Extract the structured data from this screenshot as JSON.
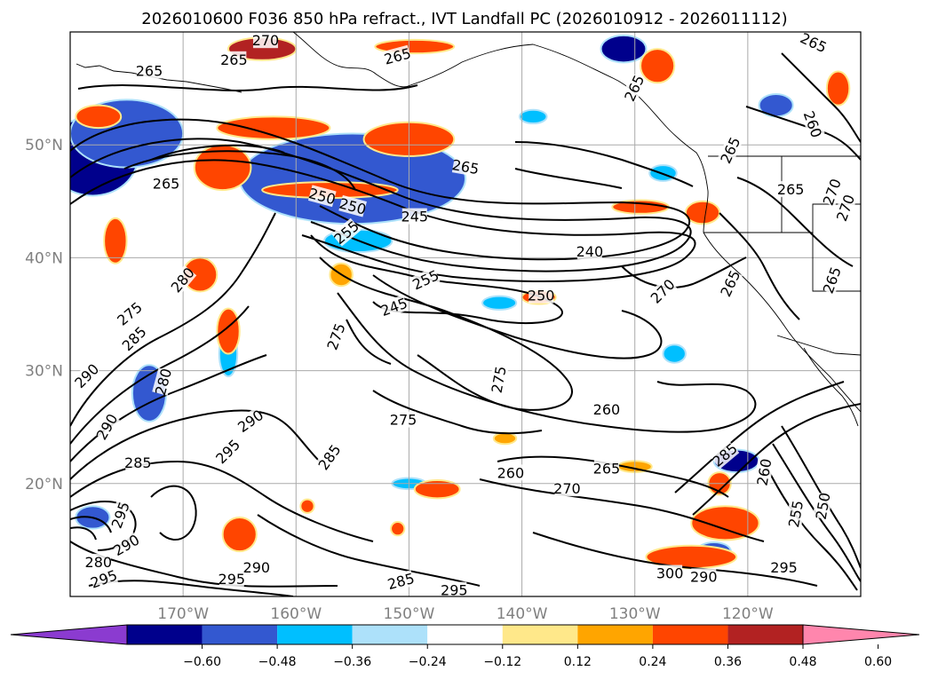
{
  "chart_data": {
    "type": "contour_map",
    "title": "2026010600 F036 850 hPa refract., IVT Landfall PC (2026010912 - 2026011112)",
    "map": {
      "region": "North Pacific",
      "lon_range": [
        -180,
        -110
      ],
      "lat_range": [
        10,
        60
      ],
      "xticks": [
        {
          "lon": -170,
          "label": "170°W"
        },
        {
          "lon": -160,
          "label": "160°W"
        },
        {
          "lon": -150,
          "label": "150°W"
        },
        {
          "lon": -140,
          "label": "140°W"
        },
        {
          "lon": -130,
          "label": "130°W"
        },
        {
          "lon": -120,
          "label": "120°W"
        }
      ],
      "yticks": [
        {
          "lat": 50,
          "label": "50°N"
        },
        {
          "lat": 40,
          "label": "40°N"
        },
        {
          "lat": 30,
          "label": "30°N"
        },
        {
          "lat": 20,
          "label": "20°N"
        }
      ],
      "gridlines": true
    },
    "contour_lines": {
      "field": "850 hPa refractivity",
      "color": "#000000",
      "labels": [
        {
          "value": "265",
          "lon": -173.0,
          "lat": 56.5,
          "angle": 0
        },
        {
          "value": "265",
          "lon": -165.5,
          "lat": 57.5,
          "angle": 0
        },
        {
          "value": "270",
          "lon": -162.7,
          "lat": 59.2,
          "angle": 0
        },
        {
          "value": "265",
          "lon": -151.0,
          "lat": 57.8,
          "angle": -15
        },
        {
          "value": "265",
          "lon": -130.0,
          "lat": 55.0,
          "angle": -65
        },
        {
          "value": "265",
          "lon": -114.2,
          "lat": 59.0,
          "angle": 25
        },
        {
          "value": "260",
          "lon": -114.3,
          "lat": 51.8,
          "angle": 70
        },
        {
          "value": "265",
          "lon": -121.5,
          "lat": 49.5,
          "angle": -65
        },
        {
          "value": "265",
          "lon": -145.0,
          "lat": 48.0,
          "angle": 10
        },
        {
          "value": "265",
          "lon": -171.5,
          "lat": 46.5,
          "angle": 0
        },
        {
          "value": "250",
          "lon": -157.7,
          "lat": 45.4,
          "angle": 15
        },
        {
          "value": "250",
          "lon": -155.0,
          "lat": 44.5,
          "angle": 15
        },
        {
          "value": "245",
          "lon": -149.5,
          "lat": 43.6,
          "angle": 0
        },
        {
          "value": "255",
          "lon": -155.5,
          "lat": 42.2,
          "angle": -40
        },
        {
          "value": "240",
          "lon": -134.0,
          "lat": 40.5,
          "angle": 0
        },
        {
          "value": "255",
          "lon": -148.5,
          "lat": 38.0,
          "angle": -25
        },
        {
          "value": "250",
          "lon": -138.3,
          "lat": 36.6,
          "angle": 0
        },
        {
          "value": "245",
          "lon": -151.3,
          "lat": 35.6,
          "angle": -20
        },
        {
          "value": "270",
          "lon": -127.5,
          "lat": 37.0,
          "angle": -45
        },
        {
          "value": "265",
          "lon": -121.5,
          "lat": 37.7,
          "angle": -65
        },
        {
          "value": "265",
          "lon": -116.2,
          "lat": 46.0,
          "angle": 0
        },
        {
          "value": "270",
          "lon": -112.5,
          "lat": 45.8,
          "angle": -70
        },
        {
          "value": "270",
          "lon": -111.3,
          "lat": 44.4,
          "angle": -70
        },
        {
          "value": "265",
          "lon": -112.5,
          "lat": 38.0,
          "angle": -70
        },
        {
          "value": "275",
          "lon": -174.7,
          "lat": 35.0,
          "angle": -40
        },
        {
          "value": "285",
          "lon": -174.3,
          "lat": 32.8,
          "angle": -45
        },
        {
          "value": "280",
          "lon": -170.0,
          "lat": 38.0,
          "angle": -50
        },
        {
          "value": "290",
          "lon": -178.5,
          "lat": 29.5,
          "angle": -45
        },
        {
          "value": "275",
          "lon": -156.4,
          "lat": 33.0,
          "angle": -70
        },
        {
          "value": "275",
          "lon": -142.0,
          "lat": 29.2,
          "angle": -80
        },
        {
          "value": "280",
          "lon": -171.7,
          "lat": 29.0,
          "angle": -75
        },
        {
          "value": "290",
          "lon": -176.7,
          "lat": 25.0,
          "angle": -60
        },
        {
          "value": "290",
          "lon": -164.0,
          "lat": 25.5,
          "angle": -35
        },
        {
          "value": "295",
          "lon": -166.0,
          "lat": 22.8,
          "angle": -45
        },
        {
          "value": "285",
          "lon": -157.0,
          "lat": 22.3,
          "angle": -55
        },
        {
          "value": "285",
          "lon": -174.0,
          "lat": 21.8,
          "angle": 0
        },
        {
          "value": "275",
          "lon": -150.5,
          "lat": 25.6,
          "angle": 0
        },
        {
          "value": "260",
          "lon": -132.5,
          "lat": 26.5,
          "angle": 0
        },
        {
          "value": "285",
          "lon": -122.0,
          "lat": 22.5,
          "angle": -40
        },
        {
          "value": "260",
          "lon": -118.5,
          "lat": 21.0,
          "angle": -80
        },
        {
          "value": "260",
          "lon": -141.0,
          "lat": 20.9,
          "angle": 0
        },
        {
          "value": "265",
          "lon": -132.5,
          "lat": 21.3,
          "angle": 0
        },
        {
          "value": "270",
          "lon": -136.0,
          "lat": 19.5,
          "angle": 0
        },
        {
          "value": "255",
          "lon": -115.7,
          "lat": 17.3,
          "angle": -80
        },
        {
          "value": "250",
          "lon": -113.3,
          "lat": 18.0,
          "angle": -80
        },
        {
          "value": "295",
          "lon": -175.5,
          "lat": 17.2,
          "angle": -70
        },
        {
          "value": "290",
          "lon": -175.0,
          "lat": 14.5,
          "angle": -30
        },
        {
          "value": "280",
          "lon": -177.5,
          "lat": 13.0,
          "angle": 0
        },
        {
          "value": "295",
          "lon": -177.0,
          "lat": 11.5,
          "angle": -20
        },
        {
          "value": "295",
          "lon": -165.7,
          "lat": 11.5,
          "angle": 0
        },
        {
          "value": "290",
          "lon": -163.5,
          "lat": 12.5,
          "angle": 0
        },
        {
          "value": "285",
          "lon": -150.7,
          "lat": 11.3,
          "angle": -15
        },
        {
          "value": "295",
          "lon": -146.0,
          "lat": 10.5,
          "angle": 0
        },
        {
          "value": "300",
          "lon": -126.9,
          "lat": 12.0,
          "angle": 0
        },
        {
          "value": "290",
          "lon": -123.9,
          "lat": 11.7,
          "angle": 0
        },
        {
          "value": "295",
          "lon": -116.8,
          "lat": 12.5,
          "angle": 0
        }
      ]
    },
    "filled_field": {
      "field": "IVT Landfall PC (2026010912 - 2026011112)",
      "anomaly_patches": [
        {
          "lon": -157.0,
          "lat": 48.0,
          "dlon": 5.0,
          "dlat": 2.0,
          "value": -0.6
        },
        {
          "lon": -153.5,
          "lat": 49.5,
          "dlon": 2.5,
          "dlat": 1.5,
          "value": -0.6
        },
        {
          "lon": -155.0,
          "lat": 47.0,
          "dlon": 10.0,
          "dlat": 4.0,
          "value": -0.4
        },
        {
          "lon": -178.0,
          "lat": 49.0,
          "dlon": 4.0,
          "dlat": 3.5,
          "value": -0.5
        },
        {
          "lon": -175.0,
          "lat": 51.0,
          "dlon": 5.0,
          "dlat": 3.0,
          "value": -0.4
        },
        {
          "lon": -131.0,
          "lat": 58.5,
          "dlon": 2.0,
          "dlat": 1.2,
          "value": -0.5
        },
        {
          "lon": -121.0,
          "lat": 22.0,
          "dlon": 2.0,
          "dlat": 1.0,
          "value": -0.5
        },
        {
          "lon": -173.0,
          "lat": 28.0,
          "dlon": 1.5,
          "dlat": 2.5,
          "value": -0.4
        },
        {
          "lon": -123.0,
          "lat": 14.0,
          "dlon": 1.5,
          "dlat": 0.8,
          "value": -0.4
        },
        {
          "lon": -117.5,
          "lat": 53.5,
          "dlon": 1.5,
          "dlat": 1.0,
          "value": -0.4
        },
        {
          "lon": -178.0,
          "lat": 17.0,
          "dlon": 1.5,
          "dlat": 1.0,
          "value": -0.4
        },
        {
          "lon": -166.0,
          "lat": 31.5,
          "dlon": 0.8,
          "dlat": 2.0,
          "value": -0.36
        },
        {
          "lon": -142.0,
          "lat": 36.0,
          "dlon": 1.5,
          "dlat": 0.6,
          "value": -0.3
        },
        {
          "lon": -154.5,
          "lat": 41.5,
          "dlon": 3.0,
          "dlat": 1.0,
          "value": -0.3
        },
        {
          "lon": -150.0,
          "lat": 20.0,
          "dlon": 1.5,
          "dlat": 0.5,
          "value": -0.3
        },
        {
          "lon": -139.0,
          "lat": 52.5,
          "dlon": 1.2,
          "dlat": 0.6,
          "value": -0.3
        },
        {
          "lon": -127.5,
          "lat": 47.5,
          "dlon": 1.2,
          "dlat": 0.7,
          "value": -0.3
        },
        {
          "lon": -126.5,
          "lat": 31.5,
          "dlon": 1.0,
          "dlat": 0.8,
          "value": -0.3
        },
        {
          "lon": -150.0,
          "lat": 50.5,
          "dlon": 4.0,
          "dlat": 1.5,
          "value": 0.4
        },
        {
          "lon": -162.0,
          "lat": 51.5,
          "dlon": 5.0,
          "dlat": 1.0,
          "value": 0.4
        },
        {
          "lon": -166.5,
          "lat": 48.0,
          "dlon": 2.5,
          "dlat": 2.0,
          "value": 0.4
        },
        {
          "lon": -157.0,
          "lat": 46.0,
          "dlon": 6.0,
          "dlat": 0.7,
          "value": 0.45
        },
        {
          "lon": -163.0,
          "lat": 58.5,
          "dlon": 3.0,
          "dlat": 1.0,
          "value": 0.5
        },
        {
          "lon": -149.5,
          "lat": 58.7,
          "dlon": 3.5,
          "dlat": 0.6,
          "value": 0.4
        },
        {
          "lon": -177.5,
          "lat": 52.5,
          "dlon": 2.0,
          "dlat": 1.0,
          "value": 0.4
        },
        {
          "lon": -168.5,
          "lat": 38.5,
          "dlon": 1.5,
          "dlat": 1.5,
          "value": 0.4
        },
        {
          "lon": -176.0,
          "lat": 41.5,
          "dlon": 1.0,
          "dlat": 2.0,
          "value": 0.4
        },
        {
          "lon": -166.0,
          "lat": 33.5,
          "dlon": 1.0,
          "dlat": 2.0,
          "value": 0.36
        },
        {
          "lon": -125.0,
          "lat": 13.5,
          "dlon": 4.0,
          "dlat": 1.0,
          "value": 0.45
        },
        {
          "lon": -122.0,
          "lat": 16.5,
          "dlon": 3.0,
          "dlat": 1.5,
          "value": 0.4
        },
        {
          "lon": -122.5,
          "lat": 20.0,
          "dlon": 1.0,
          "dlat": 1.0,
          "value": 0.4
        },
        {
          "lon": -147.5,
          "lat": 19.5,
          "dlon": 2.0,
          "dlat": 0.8,
          "value": 0.36
        },
        {
          "lon": -151.0,
          "lat": 16.0,
          "dlon": 0.6,
          "dlat": 0.6,
          "value": 0.36
        },
        {
          "lon": -159.0,
          "lat": 18.0,
          "dlon": 0.6,
          "dlat": 0.6,
          "value": 0.36
        },
        {
          "lon": -165.0,
          "lat": 15.5,
          "dlon": 1.5,
          "dlat": 1.5,
          "value": 0.4
        },
        {
          "lon": -138.5,
          "lat": 36.5,
          "dlon": 1.5,
          "dlat": 0.6,
          "value": 0.36
        },
        {
          "lon": -129.5,
          "lat": 44.5,
          "dlon": 2.5,
          "dlat": 0.6,
          "value": 0.36
        },
        {
          "lon": -124.0,
          "lat": 44.0,
          "dlon": 1.5,
          "dlat": 1.0,
          "value": 0.45
        },
        {
          "lon": -128.0,
          "lat": 57.0,
          "dlon": 1.5,
          "dlat": 1.5,
          "value": 0.4
        },
        {
          "lon": -112.0,
          "lat": 55.0,
          "dlon": 1.0,
          "dlat": 1.5,
          "value": 0.36
        },
        {
          "lon": -130.0,
          "lat": 21.5,
          "dlon": 1.5,
          "dlat": 0.5,
          "value": 0.3
        },
        {
          "lon": -141.5,
          "lat": 24.0,
          "dlon": 1.0,
          "dlat": 0.5,
          "value": 0.3
        },
        {
          "lon": -156.0,
          "lat": 38.5,
          "dlon": 1.0,
          "dlat": 1.0,
          "value": 0.3
        }
      ]
    },
    "colorbar": {
      "boundaries": [
        -0.72,
        -0.6,
        -0.48,
        -0.36,
        -0.24,
        -0.12,
        0.12,
        0.24,
        0.36,
        0.48,
        0.6,
        0.72
      ],
      "colors": [
        "#8B3BD0",
        "#00008C",
        "#3358D0",
        "#00BFFF",
        "#ADE1FA",
        "#FFFFFF",
        "#FFE88A",
        "#FFA500",
        "#FF4500",
        "#B22222",
        "#FF86AD"
      ],
      "extend": "both",
      "ticks": [
        {
          "value": -0.6,
          "label": "−0.60"
        },
        {
          "value": -0.48,
          "label": "−0.48"
        },
        {
          "value": -0.36,
          "label": "−0.36"
        },
        {
          "value": -0.24,
          "label": "−0.24"
        },
        {
          "value": -0.12,
          "label": "−0.12"
        },
        {
          "value": 0.12,
          "label": "0.12"
        },
        {
          "value": 0.24,
          "label": "0.24"
        },
        {
          "value": 0.36,
          "label": "0.36"
        },
        {
          "value": 0.48,
          "label": "0.48"
        },
        {
          "value": 0.6,
          "label": "0.60"
        }
      ]
    }
  }
}
